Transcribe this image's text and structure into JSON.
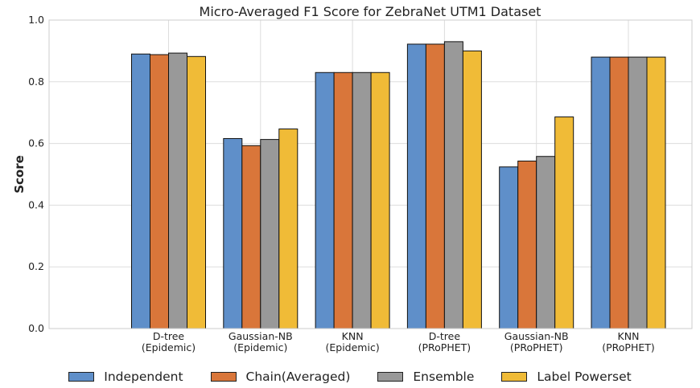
{
  "chart_data": {
    "type": "bar",
    "title": "Micro-Averaged F1 Score for ZebraNet UTM1 Dataset",
    "ylabel": "Score",
    "xlabel": "",
    "ylim": [
      0,
      1.0
    ],
    "yticks": [
      "0.0",
      "0.2",
      "0.4",
      "0.6",
      "0.8",
      "1.0"
    ],
    "grid": true,
    "legend_position": "bottom",
    "categories": [
      [
        "D-tree",
        "(Epidemic)"
      ],
      [
        "Gaussian-NB",
        "(Epidemic)"
      ],
      [
        "KNN",
        "(Epidemic)"
      ],
      [
        "D-tree",
        "(PRoPHET)"
      ],
      [
        "Gaussian-NB",
        "(PRoPHET)"
      ],
      [
        "KNN",
        "(PRoPHET)"
      ]
    ],
    "series": [
      {
        "name": "Independent",
        "color": "#5f8fc9",
        "values": [
          0.89,
          0.616,
          0.83,
          0.922,
          0.524,
          0.88
        ]
      },
      {
        "name": "Chain(Averaged)",
        "color": "#d9763a",
        "values": [
          0.888,
          0.593,
          0.83,
          0.922,
          0.543,
          0.88
        ]
      },
      {
        "name": "Ensemble",
        "color": "#999999",
        "values": [
          0.893,
          0.613,
          0.83,
          0.93,
          0.558,
          0.88
        ]
      },
      {
        "name": "Label Powerset",
        "color": "#f0bb37",
        "values": [
          0.882,
          0.647,
          0.83,
          0.9,
          0.686,
          0.88
        ]
      }
    ]
  }
}
